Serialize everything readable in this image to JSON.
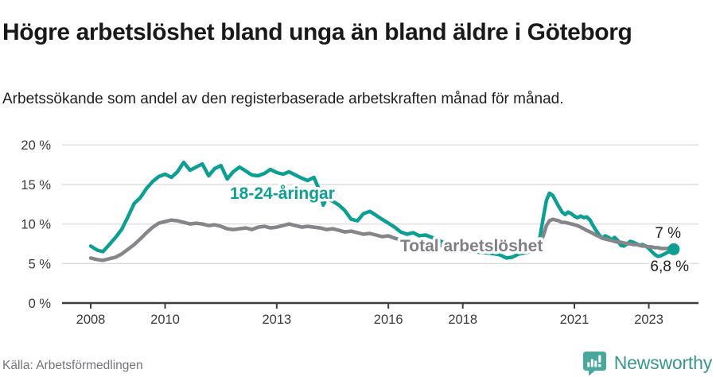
{
  "header": {
    "title": "Högre arbetslöshet bland unga än bland äldre i Göteborg",
    "subtitle": "Arbetssökande som andel av den registerbaserade arbetskraften månad för månad."
  },
  "footer": {
    "source": "Källa: Arbetsförmedlingen",
    "brand_name": "Newsworthy",
    "brand_icon": "newsworthy-speech-bubble-bar-chart-icon"
  },
  "colors": {
    "youth_line": "#0d9f93",
    "total_line": "#85858a",
    "total_label": "#7f7f85",
    "grid": "#dcdcdc",
    "axis": "#3d3d3d",
    "annotation_text": "#1c1c1c",
    "end_dot": "#0d9f93",
    "brand_teal": "#4aa79d"
  },
  "chart_data": {
    "type": "line",
    "title": "Högre arbetslöshet bland unga än bland äldre i Göteborg",
    "subtitle": "Arbetssökande som andel av den registerbaserade arbetskraften månad för månad.",
    "xlabel": "",
    "ylabel": "",
    "x_ticks": [
      2008,
      2010,
      2013,
      2016,
      2018,
      2021,
      2023
    ],
    "x_range": [
      2007.3,
      2024.4
    ],
    "y_ticks": [
      0,
      5,
      10,
      15,
      20
    ],
    "y_tick_suffix": " %",
    "ylim": [
      0,
      21.7
    ],
    "grid": "horizontal",
    "legend_position": "inline-labels",
    "annotations": [
      {
        "text": "7 %",
        "series": "Total arbetslöshet",
        "value": 7.0
      },
      {
        "text": "6,8 %",
        "series": "18-24-åringar",
        "value": 6.8
      }
    ],
    "end_dot": {
      "series": "18-24-åringar",
      "x": 2023.67,
      "value": 6.8
    },
    "series": [
      {
        "name": "18-24-åringar",
        "color": "#0d9f93",
        "points": [
          [
            2008.0,
            7.2
          ],
          [
            2008.17,
            6.7
          ],
          [
            2008.33,
            6.5
          ],
          [
            2008.5,
            7.4
          ],
          [
            2008.67,
            8.3
          ],
          [
            2008.83,
            9.3
          ],
          [
            2009.0,
            10.9
          ],
          [
            2009.17,
            12.6
          ],
          [
            2009.33,
            13.3
          ],
          [
            2009.5,
            14.5
          ],
          [
            2009.67,
            15.4
          ],
          [
            2009.83,
            16.0
          ],
          [
            2010.0,
            16.3
          ],
          [
            2010.17,
            15.9
          ],
          [
            2010.33,
            16.6
          ],
          [
            2010.5,
            17.8
          ],
          [
            2010.67,
            16.8
          ],
          [
            2010.83,
            17.2
          ],
          [
            2011.0,
            17.6
          ],
          [
            2011.17,
            16.1
          ],
          [
            2011.33,
            17.0
          ],
          [
            2011.5,
            17.4
          ],
          [
            2011.67,
            15.7
          ],
          [
            2011.83,
            16.6
          ],
          [
            2012.0,
            17.2
          ],
          [
            2012.17,
            16.7
          ],
          [
            2012.33,
            16.2
          ],
          [
            2012.5,
            16.1
          ],
          [
            2012.67,
            16.4
          ],
          [
            2012.83,
            16.9
          ],
          [
            2013.0,
            16.5
          ],
          [
            2013.17,
            16.3
          ],
          [
            2013.33,
            16.6
          ],
          [
            2013.5,
            16.2
          ],
          [
            2013.67,
            15.8
          ],
          [
            2013.83,
            15.5
          ],
          [
            2014.0,
            15.9
          ],
          [
            2014.17,
            14.0
          ],
          [
            2014.25,
            12.4
          ],
          [
            2014.33,
            13.2
          ],
          [
            2014.5,
            12.9
          ],
          [
            2014.67,
            12.4
          ],
          [
            2014.83,
            11.7
          ],
          [
            2015.0,
            10.6
          ],
          [
            2015.17,
            10.4
          ],
          [
            2015.33,
            11.3
          ],
          [
            2015.5,
            11.6
          ],
          [
            2015.67,
            11.1
          ],
          [
            2015.83,
            10.6
          ],
          [
            2016.0,
            10.1
          ],
          [
            2016.17,
            9.6
          ],
          [
            2016.33,
            9.0
          ],
          [
            2016.5,
            8.7
          ],
          [
            2016.67,
            8.9
          ],
          [
            2016.83,
            8.5
          ],
          [
            2017.0,
            8.6
          ],
          [
            2017.17,
            8.3
          ],
          [
            2017.33,
            8.0
          ],
          [
            2017.5,
            7.6
          ],
          [
            2017.75,
            7.0
          ],
          [
            2018.0,
            6.7
          ],
          [
            2018.25,
            6.5
          ],
          [
            2018.5,
            6.4
          ],
          [
            2018.75,
            6.3
          ],
          [
            2019.0,
            6.1
          ],
          [
            2019.17,
            5.7
          ],
          [
            2019.33,
            5.8
          ],
          [
            2019.5,
            6.2
          ],
          [
            2019.75,
            6.4
          ],
          [
            2020.0,
            7.0
          ],
          [
            2020.08,
            8.5
          ],
          [
            2020.17,
            11.0
          ],
          [
            2020.25,
            13.0
          ],
          [
            2020.33,
            13.9
          ],
          [
            2020.42,
            13.6
          ],
          [
            2020.5,
            12.9
          ],
          [
            2020.58,
            12.2
          ],
          [
            2020.67,
            11.5
          ],
          [
            2020.75,
            11.2
          ],
          [
            2020.83,
            11.5
          ],
          [
            2020.92,
            11.3
          ],
          [
            2021.0,
            11.0
          ],
          [
            2021.08,
            10.8
          ],
          [
            2021.17,
            11.0
          ],
          [
            2021.25,
            10.8
          ],
          [
            2021.33,
            10.9
          ],
          [
            2021.42,
            10.5
          ],
          [
            2021.5,
            9.8
          ],
          [
            2021.58,
            9.2
          ],
          [
            2021.67,
            8.6
          ],
          [
            2021.75,
            8.2
          ],
          [
            2021.83,
            8.5
          ],
          [
            2021.92,
            8.3
          ],
          [
            2022.0,
            8.0
          ],
          [
            2022.08,
            8.3
          ],
          [
            2022.17,
            7.9
          ],
          [
            2022.25,
            7.3
          ],
          [
            2022.33,
            7.2
          ],
          [
            2022.42,
            7.5
          ],
          [
            2022.5,
            7.8
          ],
          [
            2022.58,
            7.7
          ],
          [
            2022.67,
            7.5
          ],
          [
            2022.75,
            7.3
          ],
          [
            2022.83,
            7.4
          ],
          [
            2022.92,
            7.2
          ],
          [
            2023.0,
            6.9
          ],
          [
            2023.08,
            6.5
          ],
          [
            2023.17,
            6.1
          ],
          [
            2023.25,
            5.9
          ],
          [
            2023.33,
            6.0
          ],
          [
            2023.42,
            6.2
          ],
          [
            2023.5,
            6.4
          ],
          [
            2023.58,
            6.6
          ],
          [
            2023.67,
            6.8
          ]
        ]
      },
      {
        "name": "Total arbetslöshet",
        "color": "#85858a",
        "points": [
          [
            2008.0,
            5.7
          ],
          [
            2008.17,
            5.5
          ],
          [
            2008.33,
            5.4
          ],
          [
            2008.5,
            5.6
          ],
          [
            2008.67,
            5.8
          ],
          [
            2008.83,
            6.2
          ],
          [
            2009.0,
            6.8
          ],
          [
            2009.17,
            7.4
          ],
          [
            2009.33,
            8.1
          ],
          [
            2009.5,
            8.9
          ],
          [
            2009.67,
            9.6
          ],
          [
            2009.83,
            10.1
          ],
          [
            2010.0,
            10.3
          ],
          [
            2010.17,
            10.5
          ],
          [
            2010.33,
            10.4
          ],
          [
            2010.5,
            10.2
          ],
          [
            2010.67,
            10.0
          ],
          [
            2010.83,
            10.1
          ],
          [
            2011.0,
            10.0
          ],
          [
            2011.17,
            9.8
          ],
          [
            2011.33,
            9.9
          ],
          [
            2011.5,
            9.7
          ],
          [
            2011.67,
            9.4
          ],
          [
            2011.83,
            9.3
          ],
          [
            2012.0,
            9.4
          ],
          [
            2012.17,
            9.5
          ],
          [
            2012.33,
            9.3
          ],
          [
            2012.5,
            9.6
          ],
          [
            2012.67,
            9.7
          ],
          [
            2012.83,
            9.5
          ],
          [
            2013.0,
            9.6
          ],
          [
            2013.17,
            9.8
          ],
          [
            2013.33,
            10.0
          ],
          [
            2013.5,
            9.8
          ],
          [
            2013.67,
            9.6
          ],
          [
            2013.83,
            9.7
          ],
          [
            2014.0,
            9.6
          ],
          [
            2014.17,
            9.5
          ],
          [
            2014.33,
            9.3
          ],
          [
            2014.5,
            9.4
          ],
          [
            2014.67,
            9.2
          ],
          [
            2014.83,
            9.0
          ],
          [
            2015.0,
            9.1
          ],
          [
            2015.17,
            8.9
          ],
          [
            2015.33,
            8.7
          ],
          [
            2015.5,
            8.8
          ],
          [
            2015.67,
            8.6
          ],
          [
            2015.83,
            8.4
          ],
          [
            2016.0,
            8.5
          ],
          [
            2016.17,
            8.2
          ],
          [
            2016.33,
            8.0
          ],
          [
            2016.5,
            7.9
          ],
          [
            2016.67,
            7.8
          ],
          [
            2016.83,
            7.7
          ],
          [
            2017.0,
            7.6
          ],
          [
            2017.25,
            7.4
          ],
          [
            2017.5,
            7.2
          ],
          [
            2017.75,
            7.1
          ],
          [
            2018.0,
            7.0
          ],
          [
            2018.25,
            6.9
          ],
          [
            2018.5,
            6.8
          ],
          [
            2018.75,
            6.8
          ],
          [
            2019.0,
            6.7
          ],
          [
            2019.25,
            6.7
          ],
          [
            2019.5,
            6.8
          ],
          [
            2019.75,
            7.0
          ],
          [
            2020.0,
            7.2
          ],
          [
            2020.08,
            7.6
          ],
          [
            2020.17,
            8.6
          ],
          [
            2020.25,
            9.8
          ],
          [
            2020.33,
            10.4
          ],
          [
            2020.42,
            10.6
          ],
          [
            2020.5,
            10.5
          ],
          [
            2020.58,
            10.4
          ],
          [
            2020.67,
            10.2
          ],
          [
            2020.75,
            10.2
          ],
          [
            2020.83,
            10.1
          ],
          [
            2020.92,
            10.0
          ],
          [
            2021.0,
            9.9
          ],
          [
            2021.08,
            9.8
          ],
          [
            2021.17,
            9.6
          ],
          [
            2021.25,
            9.4
          ],
          [
            2021.33,
            9.2
          ],
          [
            2021.42,
            9.0
          ],
          [
            2021.5,
            8.8
          ],
          [
            2021.58,
            8.6
          ],
          [
            2021.67,
            8.4
          ],
          [
            2021.75,
            8.2
          ],
          [
            2021.83,
            8.1
          ],
          [
            2021.92,
            8.0
          ],
          [
            2022.0,
            7.9
          ],
          [
            2022.08,
            7.8
          ],
          [
            2022.17,
            7.7
          ],
          [
            2022.25,
            7.7
          ],
          [
            2022.33,
            7.6
          ],
          [
            2022.42,
            7.5
          ],
          [
            2022.5,
            7.5
          ],
          [
            2022.58,
            7.4
          ],
          [
            2022.67,
            7.4
          ],
          [
            2022.75,
            7.3
          ],
          [
            2022.83,
            7.2
          ],
          [
            2022.92,
            7.2
          ],
          [
            2023.0,
            7.1
          ],
          [
            2023.08,
            7.1
          ],
          [
            2023.17,
            7.0
          ],
          [
            2023.25,
            7.0
          ],
          [
            2023.33,
            6.9
          ],
          [
            2023.42,
            6.9
          ],
          [
            2023.5,
            6.9
          ],
          [
            2023.58,
            7.0
          ],
          [
            2023.67,
            7.0
          ]
        ]
      }
    ]
  }
}
